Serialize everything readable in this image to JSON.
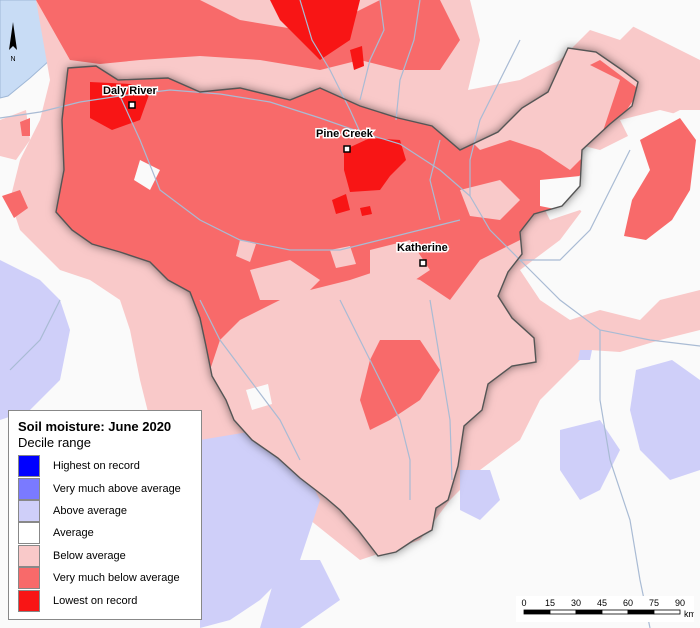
{
  "legend": {
    "title": "Soil moisture: June 2020",
    "subtitle": "Decile range",
    "items": [
      {
        "label": "Highest on record",
        "color": "#0000ff"
      },
      {
        "label": "Very much above average",
        "color": "#7a7aff"
      },
      {
        "label": "Above average",
        "color": "#cfcff9"
      },
      {
        "label": "Average",
        "color": "#ffffff"
      },
      {
        "label": "Below average",
        "color": "#f9c9c9"
      },
      {
        "label": "Very much below average",
        "color": "#f86a6a"
      },
      {
        "label": "Lowest on record",
        "color": "#f81515"
      }
    ]
  },
  "towns": [
    {
      "name": "Daly River"
    },
    {
      "name": "Pine Creek"
    },
    {
      "name": "Katherine"
    }
  ],
  "scalebar": {
    "ticks": [
      "0",
      "15",
      "30",
      "45",
      "60",
      "75",
      "90"
    ],
    "unit": "km"
  },
  "north_arrow": {
    "label": "N"
  },
  "colors": {
    "water": "#c8dcf5",
    "river": "#a9bbd4",
    "outline": "#555555"
  }
}
